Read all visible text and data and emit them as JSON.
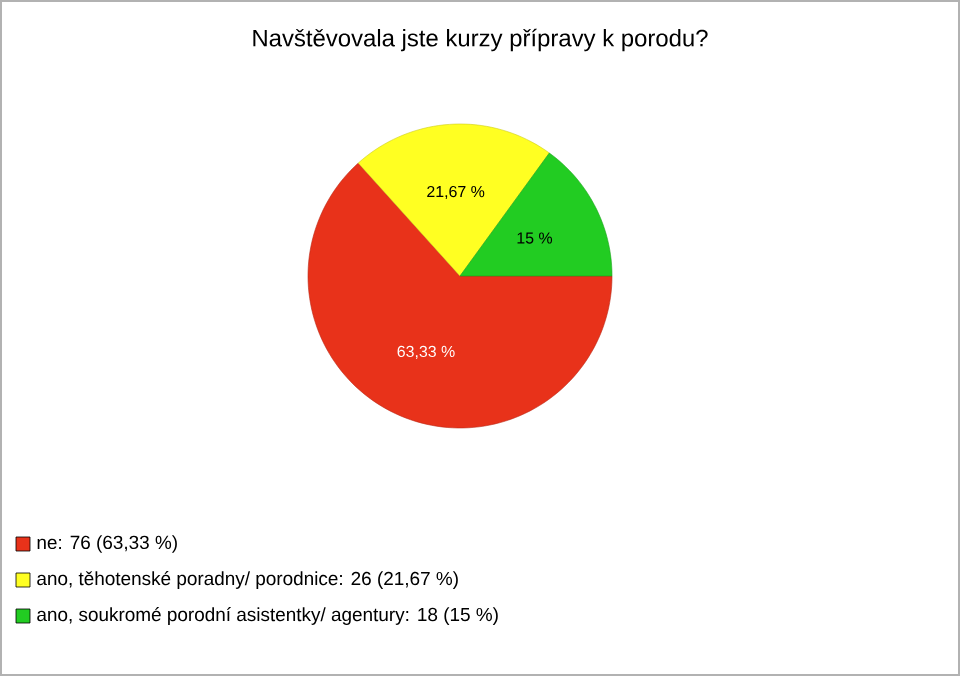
{
  "chart_data": {
    "type": "pie",
    "title": "Navštěvovala jste kurzy přípravy k porodu?",
    "categories": [
      "ne: 76 (63,33 %)",
      "ano, těhotenské poradny/ porodnice: 26 (21,67 %)",
      "ano, soukromé porodní asistentky/ agentury: 18 (15 %)"
    ],
    "values": [
      63.33,
      21.67,
      15
    ],
    "value_labels": [
      "63,33 %",
      "21,67 %",
      "15 %"
    ],
    "colors": [
      "#e8321a",
      "#ffff22",
      "#22cc22"
    ],
    "legend": "bottom left"
  }
}
